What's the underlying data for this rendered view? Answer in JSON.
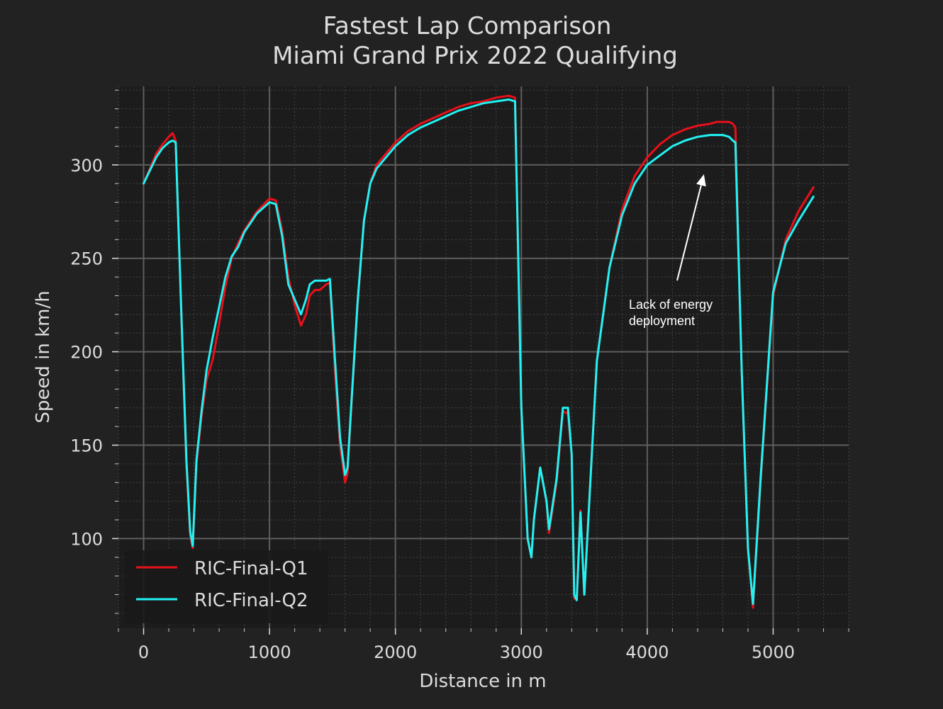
{
  "chart_data": {
    "type": "line",
    "title": "Fastest Lap Comparison",
    "subtitle": "Miami Grand Prix 2022 Qualifying",
    "xlabel": "Distance in m",
    "ylabel": "Speed in km/h",
    "xlim": [
      -200,
      5600
    ],
    "ylim": [
      52,
      342
    ],
    "x_ticks": [
      0,
      1000,
      2000,
      3000,
      4000,
      5000
    ],
    "y_ticks": [
      100,
      150,
      200,
      250,
      300
    ],
    "grid": true,
    "background": "#1c1c1c",
    "legend_position": "bottom-left",
    "series": [
      {
        "name": "RIC-Final-Q1",
        "color": "#e8101a",
        "x": [
          0,
          50,
          100,
          150,
          200,
          230,
          255,
          300,
          340,
          370,
          390,
          420,
          460,
          500,
          550,
          600,
          650,
          700,
          750,
          800,
          900,
          1000,
          1050,
          1100,
          1150,
          1200,
          1250,
          1290,
          1320,
          1360,
          1400,
          1450,
          1480,
          1520,
          1560,
          1600,
          1620,
          1650,
          1700,
          1750,
          1800,
          1850,
          1900,
          2000,
          2100,
          2200,
          2300,
          2400,
          2500,
          2600,
          2700,
          2800,
          2900,
          2950,
          3000,
          3050,
          3080,
          3100,
          3150,
          3200,
          3220,
          3280,
          3330,
          3370,
          3400,
          3420,
          3440,
          3470,
          3500,
          3520,
          3600,
          3700,
          3800,
          3900,
          4000,
          4100,
          4200,
          4300,
          4400,
          4500,
          4550,
          4600,
          4650,
          4680,
          4700,
          4750,
          4800,
          4840,
          4900,
          5000,
          5100,
          5200,
          5320
        ],
        "values": [
          290,
          298,
          306,
          311,
          315,
          317,
          313,
          220,
          140,
          102,
          95,
          140,
          165,
          185,
          196,
          215,
          235,
          250,
          258,
          265,
          275,
          282,
          281,
          265,
          240,
          225,
          214,
          220,
          230,
          233,
          233,
          236,
          237,
          190,
          150,
          130,
          135,
          170,
          225,
          270,
          290,
          300,
          304,
          312,
          318,
          322,
          325,
          328,
          331,
          333,
          334,
          336,
          337,
          336,
          170,
          100,
          90,
          110,
          138,
          120,
          103,
          130,
          168,
          167,
          145,
          68,
          68,
          115,
          70,
          95,
          195,
          245,
          276,
          294,
          304,
          311,
          316,
          319,
          321,
          322,
          323,
          323,
          323,
          322,
          320,
          190,
          95,
          63,
          130,
          230,
          260,
          275,
          288
        ]
      },
      {
        "name": "RIC-Final-Q2",
        "color": "#22f2f2",
        "x": [
          0,
          50,
          100,
          150,
          200,
          230,
          255,
          300,
          340,
          370,
          390,
          420,
          460,
          500,
          550,
          600,
          650,
          700,
          750,
          800,
          900,
          1000,
          1050,
          1100,
          1150,
          1200,
          1250,
          1290,
          1320,
          1360,
          1400,
          1450,
          1480,
          1520,
          1560,
          1600,
          1620,
          1650,
          1700,
          1750,
          1800,
          1850,
          1900,
          2000,
          2100,
          2200,
          2300,
          2400,
          2500,
          2600,
          2700,
          2800,
          2900,
          2950,
          3000,
          3050,
          3080,
          3100,
          3150,
          3200,
          3220,
          3280,
          3330,
          3370,
          3400,
          3420,
          3440,
          3470,
          3500,
          3520,
          3600,
          3700,
          3800,
          3900,
          4000,
          4100,
          4200,
          4300,
          4400,
          4500,
          4550,
          4600,
          4650,
          4680,
          4700,
          4750,
          4800,
          4840,
          4900,
          5000,
          5100,
          5200,
          5320
        ],
        "values": [
          290,
          297,
          304,
          309,
          312,
          313,
          312,
          220,
          142,
          104,
          96,
          142,
          168,
          190,
          208,
          224,
          240,
          251,
          256,
          264,
          274,
          280,
          279,
          262,
          236,
          228,
          220,
          228,
          236,
          238,
          238,
          238,
          239,
          196,
          154,
          134,
          138,
          172,
          227,
          270,
          290,
          298,
          302,
          310,
          316,
          320,
          323,
          326,
          329,
          331,
          333,
          334,
          335,
          334,
          170,
          100,
          90,
          110,
          138,
          120,
          105,
          132,
          170,
          170,
          145,
          70,
          67,
          114,
          70,
          95,
          195,
          245,
          273,
          290,
          300,
          305,
          310,
          313,
          315,
          316,
          316,
          316,
          315,
          313,
          312,
          190,
          95,
          65,
          132,
          232,
          258,
          270,
          283
        ]
      }
    ],
    "annotation": {
      "text_line1": "Lack of energy",
      "text_line2": "deployment",
      "arrow_x": 4450,
      "arrow_y": 295
    }
  }
}
